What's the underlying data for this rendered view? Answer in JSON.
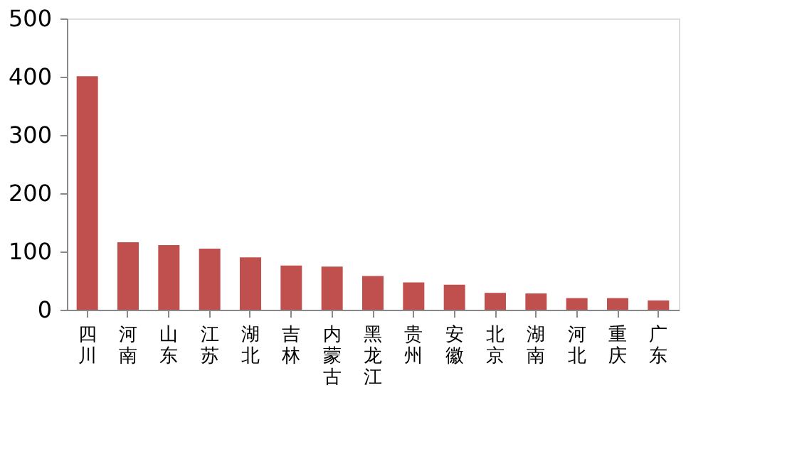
{
  "chart_data": {
    "type": "bar",
    "categories": [
      "四川",
      "河南",
      "山东",
      "江苏",
      "湖北",
      "吉林",
      "内蒙古",
      "黑龙江",
      "贵州",
      "安徽",
      "北京",
      "湖南",
      "河北",
      "重庆",
      "广东"
    ],
    "values": [
      401,
      116,
      111,
      105,
      90,
      76,
      74,
      58,
      47,
      43,
      29,
      28,
      20,
      20,
      16
    ],
    "color": "#c0504d",
    "ylim": [
      0,
      500
    ],
    "yticks": [
      0,
      100,
      200,
      300,
      400,
      500
    ],
    "grid": false
  }
}
